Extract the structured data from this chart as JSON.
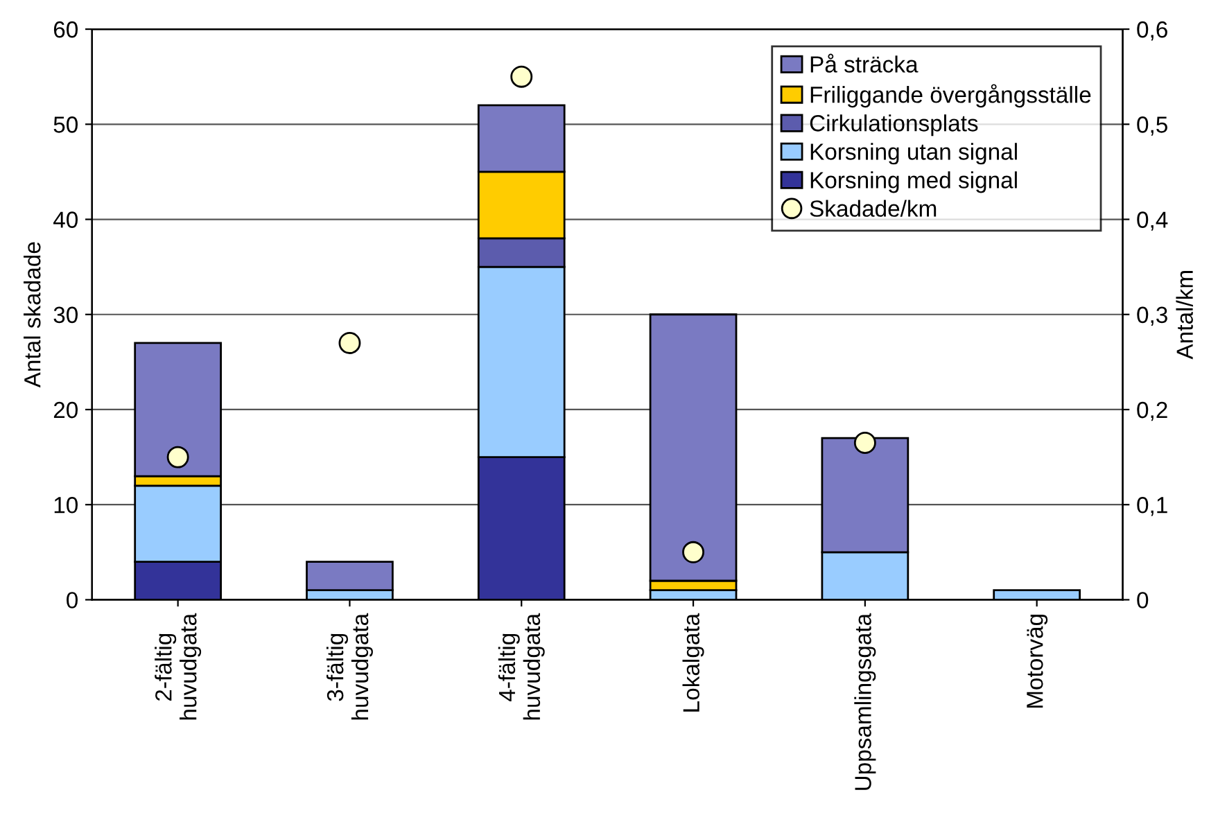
{
  "chart_data": {
    "type": "bar",
    "stacked": true,
    "xlabel": null,
    "ylabel": "Antal skadade",
    "y2label": "Antal/km",
    "categories": [
      "2-fältig\nhuvudgata",
      "3-fältig\nhuvudgata",
      "4-fältig\nhuvudgata",
      "Lokalgata",
      "Uppsamlingsgata",
      "Motorväg"
    ],
    "series": [
      {
        "name": "Korsning med signal",
        "color": "#333399",
        "values": [
          4,
          0,
          15,
          0,
          0,
          0
        ]
      },
      {
        "name": "Korsning utan signal",
        "color": "#99ccff",
        "values": [
          8,
          1,
          20,
          1,
          5,
          1
        ]
      },
      {
        "name": "Cirkulationsplats",
        "color": "#5c5cad",
        "values": [
          0,
          0,
          3,
          0,
          0,
          0
        ]
      },
      {
        "name": "Friliggande övergångsställe",
        "color": "#ffcc00",
        "values": [
          1,
          0,
          7,
          1,
          0,
          0
        ]
      },
      {
        "name": "På sträcka",
        "color": "#7a7ac2",
        "values": [
          14,
          3,
          7,
          28,
          12,
          0
        ]
      },
      {
        "name": "Skadade/km",
        "type": "scatter",
        "axis": "y2",
        "color": "#ffffcc",
        "marker": "circle",
        "values": [
          0.15,
          0.27,
          0.55,
          0.05,
          0.165,
          null
        ]
      }
    ],
    "ylim": [
      0,
      60
    ],
    "yticks": [
      0,
      10,
      20,
      30,
      40,
      50,
      60
    ],
    "y2lim": [
      0,
      0.6
    ],
    "y2ticks": [
      0,
      {
        "value": 0.1,
        "label": "0,1"
      },
      {
        "value": 0.2,
        "label": "0,2"
      },
      {
        "value": 0.3,
        "label": "0,3"
      },
      {
        "value": 0.4,
        "label": "0,4"
      },
      {
        "value": 0.5,
        "label": "0,5"
      },
      {
        "value": 0.6,
        "label": "0,6"
      }
    ],
    "grid": "y",
    "legend": "top right"
  }
}
